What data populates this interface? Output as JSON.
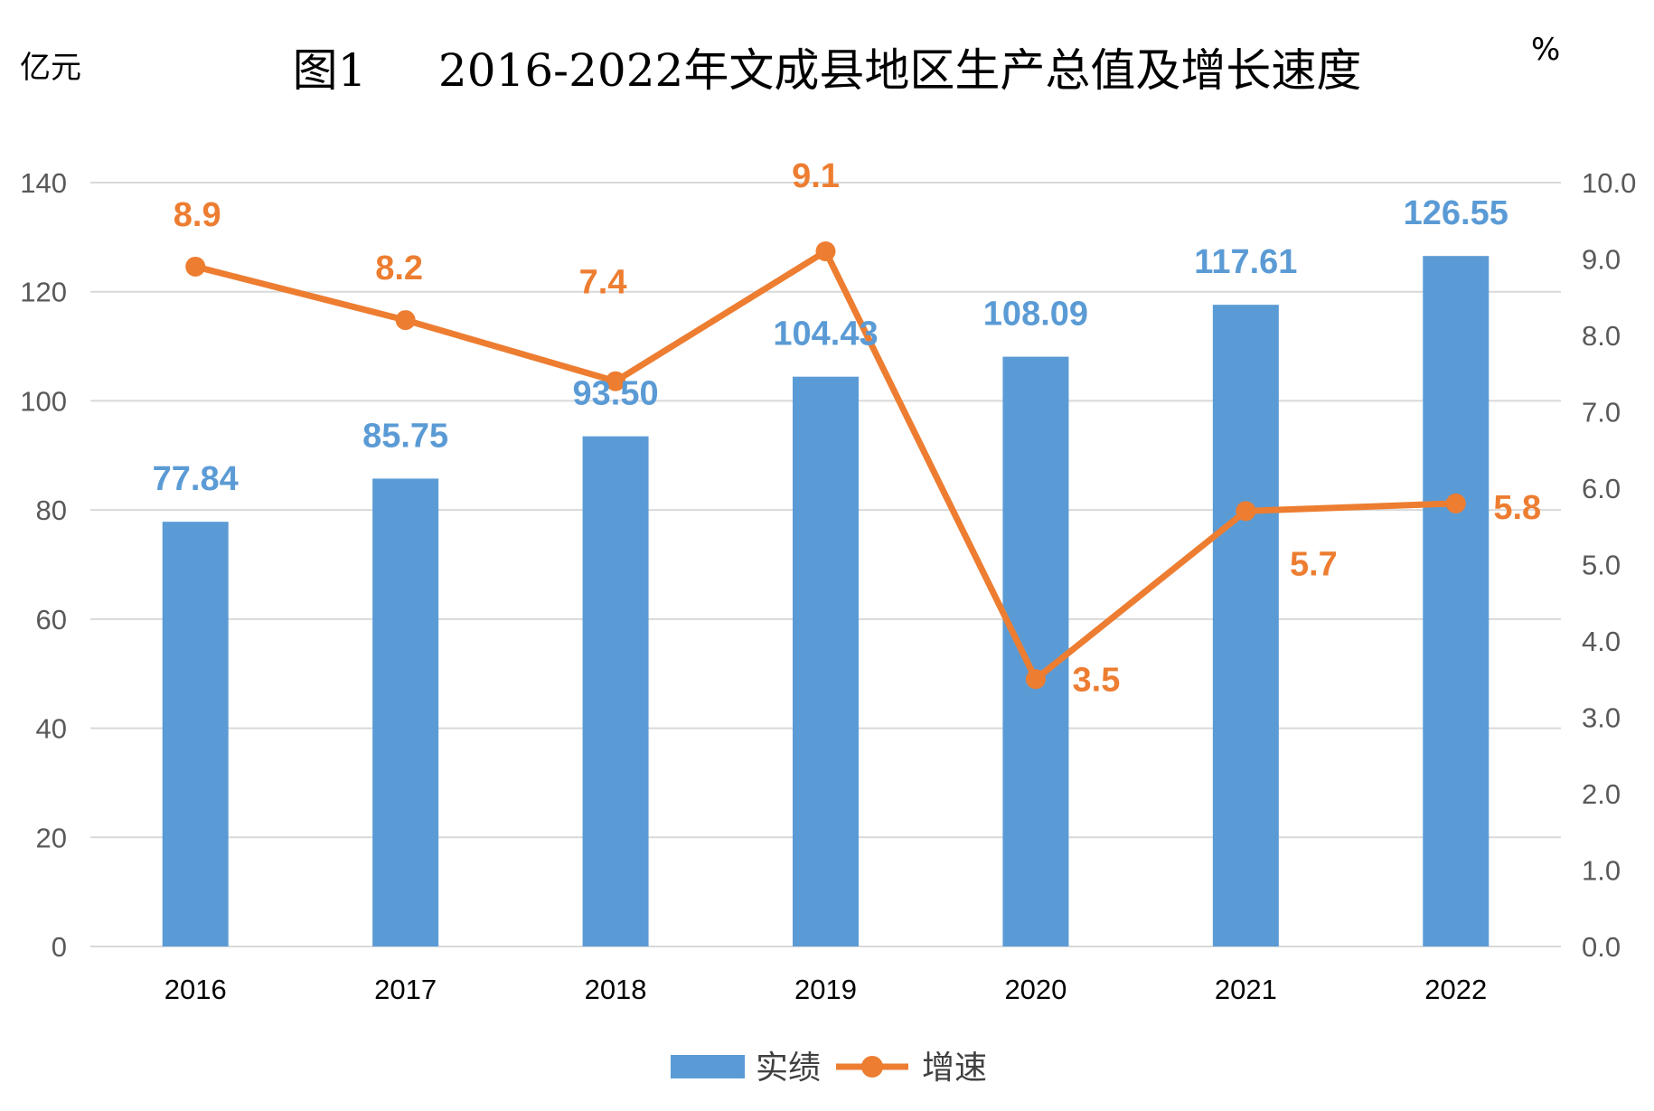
{
  "chart_data": {
    "type": "bar",
    "title": "图1     2016-2022年文成县地区生产总值及增长速度",
    "y_left_unit": "亿元",
    "y_right_unit": "%",
    "categories": [
      "2016",
      "2017",
      "2018",
      "2019",
      "2020",
      "2021",
      "2022"
    ],
    "series": [
      {
        "name": "实绩",
        "type": "bar",
        "axis": "left",
        "color": "#5B9BD5",
        "values": [
          77.84,
          85.75,
          93.5,
          104.43,
          108.09,
          117.61,
          126.55
        ],
        "labels": [
          "77.84",
          "85.75",
          "93.50",
          "104.43",
          "108.09",
          "117.61",
          "126.55"
        ]
      },
      {
        "name": "增速",
        "type": "line",
        "axis": "right",
        "color": "#ED7D31",
        "values": [
          8.9,
          8.2,
          7.4,
          9.1,
          3.5,
          5.7,
          5.8
        ],
        "labels": [
          "8.9",
          "8.2",
          "7.4",
          "9.1",
          "3.5",
          "5.7",
          "5.8"
        ]
      }
    ],
    "y_left": {
      "min": 0,
      "max": 140,
      "ticks": [
        "0",
        "20",
        "40",
        "60",
        "80",
        "100",
        "120",
        "140"
      ]
    },
    "y_right": {
      "min": 0,
      "max": 10,
      "ticks": [
        "0.0",
        "1.0",
        "2.0",
        "3.0",
        "4.0",
        "5.0",
        "6.0",
        "7.0",
        "8.0",
        "9.0",
        "10.0"
      ]
    },
    "grid": true,
    "legend_position": "bottom-center",
    "gridline_color": "#D9D9D9"
  }
}
